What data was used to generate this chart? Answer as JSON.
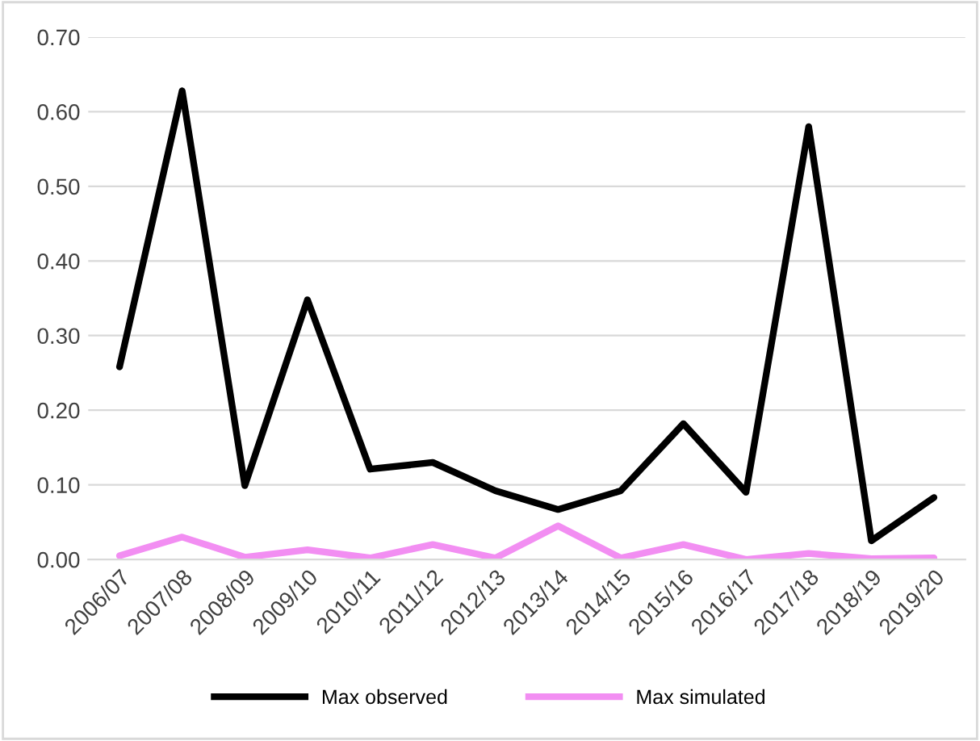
{
  "chart_data": {
    "type": "line",
    "categories": [
      "2006/07",
      "2007/08",
      "2008/09",
      "2009/10",
      "2010/11",
      "2011/12",
      "2012/13",
      "2013/14",
      "2014/15",
      "2015/16",
      "2016/17",
      "2017/18",
      "2018/19",
      "2019/20"
    ],
    "series": [
      {
        "name": "Max observed",
        "color": "#000000",
        "values": [
          0.258,
          0.628,
          0.099,
          0.348,
          0.121,
          0.13,
          0.092,
          0.067,
          0.092,
          0.182,
          0.09,
          0.58,
          0.025,
          0.083
        ]
      },
      {
        "name": "Max simulated",
        "color": "#f28ef2",
        "values": [
          0.005,
          0.03,
          0.003,
          0.013,
          0.002,
          0.02,
          0.002,
          0.045,
          0.002,
          0.02,
          0.0,
          0.008,
          0.001,
          0.002
        ]
      }
    ],
    "ylim": [
      0,
      0.7
    ],
    "yticks": [
      {
        "value": 0,
        "label": "0.00"
      },
      {
        "value": 0.1,
        "label": "0.10"
      },
      {
        "value": 0.2,
        "label": "0.20"
      },
      {
        "value": 0.3,
        "label": "0.30"
      },
      {
        "value": 0.4,
        "label": "0.40"
      },
      {
        "value": 0.5,
        "label": "0.50"
      },
      {
        "value": 0.6,
        "label": "0.60"
      },
      {
        "value": 0.7,
        "label": "0.70"
      }
    ],
    "grid": "y",
    "legend": "bottom",
    "marker": "none",
    "line_style": "solid"
  }
}
